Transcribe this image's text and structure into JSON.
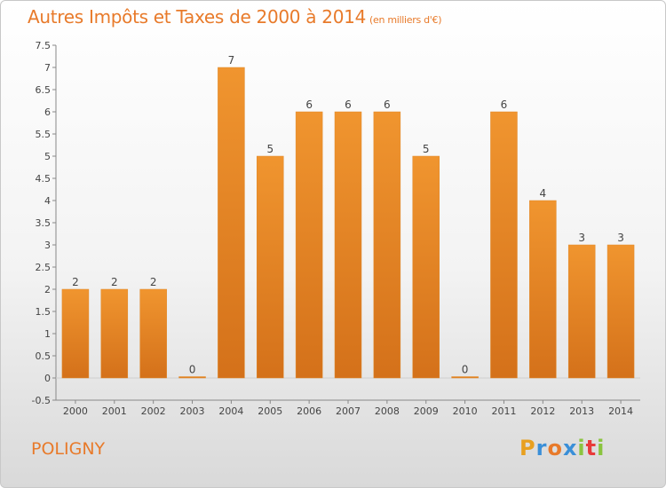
{
  "title": "Autres Impôts et Taxes de 2000 à 2014",
  "unit_note": "(en milliers d'€)",
  "commune": "POLIGNY",
  "brand": {
    "letters": [
      "P",
      "r",
      "o",
      "x",
      "i",
      "t",
      "i"
    ],
    "colors": [
      "#e8a020",
      "#3a8fd8",
      "#e87a2a",
      "#3a8fd8",
      "#8bc43f",
      "#e83a3a",
      "#8bc43f"
    ]
  },
  "chart_data": {
    "type": "bar",
    "title": "Autres Impôts et Taxes de 2000 à 2014",
    "subtitle": "(en milliers d'€)",
    "categories": [
      "2000",
      "2001",
      "2002",
      "2003",
      "2004",
      "2005",
      "2006",
      "2007",
      "2008",
      "2009",
      "2010",
      "2011",
      "2012",
      "2013",
      "2014"
    ],
    "values": [
      2,
      2,
      2,
      0,
      7,
      5,
      6,
      6,
      6,
      5,
      0,
      6,
      4,
      3,
      3
    ],
    "data_labels": [
      "2",
      "2",
      "2",
      "0",
      "7",
      "5",
      "6",
      "6",
      "6",
      "5",
      "0",
      "6",
      "4",
      "3",
      "3"
    ],
    "y_ticks": [
      "-0.5",
      "0",
      "0.5",
      "1",
      "1.5",
      "2",
      "2.5",
      "3",
      "3.5",
      "4",
      "4.5",
      "5",
      "5.5",
      "6",
      "6.5",
      "7",
      "7.5"
    ],
    "ylim": [
      -0.5,
      7.5
    ],
    "grid": false,
    "bar_color": "#f0952f",
    "bar_color_dark": "#d4711a"
  }
}
